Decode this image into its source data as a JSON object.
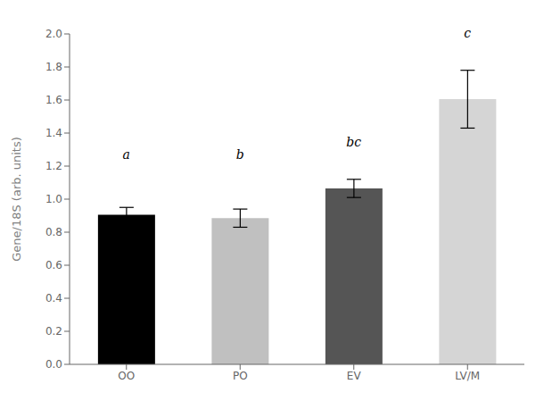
{
  "chart_data": {
    "type": "bar",
    "ylabel": "Gene/18S (arb. units)",
    "categories": [
      "OO",
      "PO",
      "EV",
      "LV/M"
    ],
    "values": [
      0.905,
      0.885,
      1.065,
      1.605
    ],
    "errors": [
      0.045,
      0.055,
      0.055,
      0.175
    ],
    "colors": [
      "#000000",
      "#c0c0c0",
      "#555555",
      "#d5d5d5"
    ],
    "annotations": [
      {
        "text": "a",
        "x": "OO",
        "y": 1.23
      },
      {
        "text": "b",
        "x": "PO",
        "y": 1.23
      },
      {
        "text": "bc",
        "x": "EV",
        "y": 1.31
      },
      {
        "text": "c",
        "x": "LV/M",
        "y": 1.97
      }
    ],
    "ylim": [
      0.0,
      2.0
    ],
    "yticks": [
      {
        "value": 0,
        "label": "0.0"
      },
      0.2,
      0.4,
      0.6,
      0.8,
      {
        "value": 1,
        "label": "1.0"
      },
      1.2,
      1.4,
      1.6,
      1.8,
      {
        "value": 2,
        "label": "2.0"
      }
    ],
    "grid": false
  }
}
